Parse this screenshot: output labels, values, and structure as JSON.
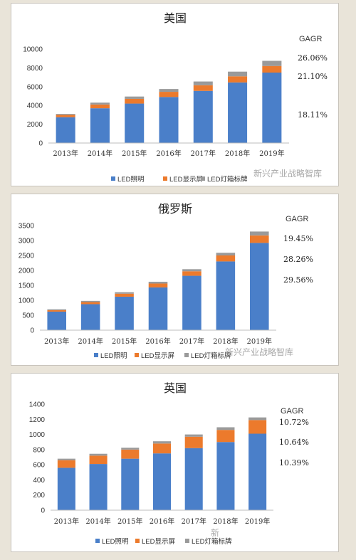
{
  "colors": {
    "led_lighting": "#4a7fc9",
    "led_display": "#ec7a2c",
    "led_signage": "#9a9a9a"
  },
  "legend": [
    "LED照明",
    "LED显示屏",
    "LED灯箱标牌"
  ],
  "watermark": "新兴产业战略智库",
  "watermark_short": "新",
  "chart_data": [
    {
      "type": "bar",
      "stacked": true,
      "title": "美国",
      "categories": [
        "2013年",
        "2014年",
        "2015年",
        "2016年",
        "2017年",
        "2018年",
        "2019年"
      ],
      "ylim": [
        0,
        10000
      ],
      "yticks": [
        "0",
        "2000",
        "4000",
        "6000",
        "8000",
        "10000"
      ],
      "series": [
        {
          "name": "LED照明",
          "values": [
            2750,
            3700,
            4200,
            4900,
            5550,
            6450,
            7500
          ]
        },
        {
          "name": "LED显示屏",
          "values": [
            250,
            400,
            500,
            550,
            600,
            650,
            700
          ]
        },
        {
          "name": "LED灯箱标牌",
          "values": [
            100,
            200,
            250,
            300,
            400,
            500,
            550
          ]
        }
      ],
      "legend_position": "bottom",
      "gagr_label": "GAGR",
      "gagr_values": [
        "26.06%",
        "21.10%",
        "18.11%"
      ]
    },
    {
      "type": "bar",
      "stacked": true,
      "title": "俄罗斯",
      "categories": [
        "2013年",
        "2014年",
        "2015年",
        "2016年",
        "2017年",
        "2018年",
        "2019年"
      ],
      "ylim": [
        0,
        3500
      ],
      "yticks": [
        "0",
        "500",
        "1000",
        "1500",
        "2000",
        "2500",
        "3000",
        "3500"
      ],
      "series": [
        {
          "name": "LED照明",
          "values": [
            620,
            870,
            1120,
            1430,
            1820,
            2300,
            2920
          ]
        },
        {
          "name": "LED显示屏",
          "values": [
            50,
            70,
            100,
            130,
            150,
            200,
            250
          ]
        },
        {
          "name": "LED灯箱标牌",
          "values": [
            30,
            40,
            50,
            60,
            70,
            90,
            130
          ]
        }
      ],
      "legend_position": "bottom",
      "gagr_label": "GAGR",
      "gagr_values": [
        "19.45%",
        "28.26%",
        "29.56%"
      ]
    },
    {
      "type": "bar",
      "stacked": true,
      "title": "英国",
      "categories": [
        "2013年",
        "2014年",
        "2015年",
        "2016年",
        "2017年",
        "2018年",
        "2019年"
      ],
      "ylim": [
        0,
        1400
      ],
      "yticks": [
        "0",
        "200",
        "400",
        "600",
        "800",
        "1000",
        "1200",
        "1400"
      ],
      "series": [
        {
          "name": "LED照明",
          "values": [
            560,
            610,
            680,
            750,
            820,
            900,
            1010
          ]
        },
        {
          "name": "LED显示屏",
          "values": [
            100,
            110,
            120,
            130,
            150,
            160,
            180
          ]
        },
        {
          "name": "LED灯箱标牌",
          "values": [
            20,
            25,
            25,
            30,
            30,
            35,
            35
          ]
        }
      ],
      "legend_position": "bottom",
      "gagr_label": "GAGR",
      "gagr_values": [
        "10.72%",
        "10.64%",
        "10.39%"
      ]
    }
  ]
}
